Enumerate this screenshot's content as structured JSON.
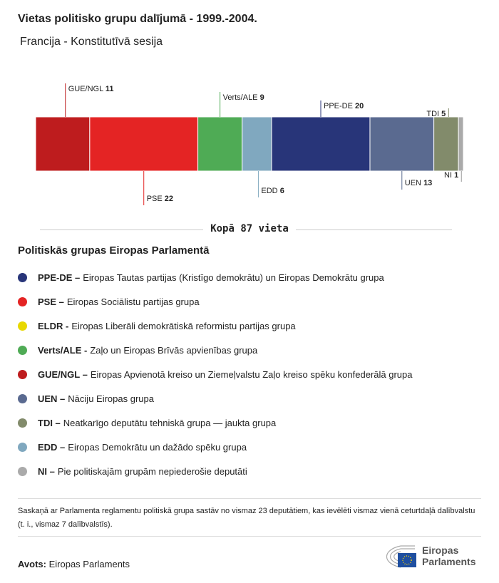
{
  "title": "Vietas politisko grupu dalījumā - 1999.-2004.",
  "subtitle": "Francija - Konstitutīvā sesija",
  "chart_data": {
    "type": "bar",
    "orientation": "stacked-horizontal",
    "categories": [
      "GUE/NGL",
      "PSE",
      "Verts/ALE",
      "EDD",
      "PPE-DE",
      "UEN",
      "TDI",
      "NI"
    ],
    "values": [
      11,
      22,
      9,
      6,
      20,
      13,
      5,
      1
    ],
    "colors": [
      "#be1c1e",
      "#e42424",
      "#4fab55",
      "#80a8bf",
      "#283579",
      "#5a6a90",
      "#828b6b",
      "#aaaaaa"
    ],
    "total": 87
  },
  "total_label": "Kopā 87 vieta",
  "legend_title": "Politiskās grupas Eiropas Parlamentā",
  "legend": [
    {
      "abbr": "PPE-DE –",
      "desc": "Eiropas Tautas partijas (Kristīgo demokrātu) un Eiropas Demokrātu grupa",
      "color": "#283579"
    },
    {
      "abbr": "PSE –",
      "desc": "Eiropas Sociālistu partijas grupa",
      "color": "#e42424"
    },
    {
      "abbr": "ELDR -",
      "desc": "Eiropas Liberāli demokrātiskā reformistu partijas grupa",
      "color": "#e8d800"
    },
    {
      "abbr": "Verts/ALE -",
      "desc": "Zaļo un Eiropas Brīvās apvienības grupa",
      "color": "#4fab55"
    },
    {
      "abbr": "GUE/NGL –",
      "desc": "Eiropas Apvienotā kreiso un Ziemeļvalstu Zaļo kreiso spēku konfederālā grupa",
      "color": "#be1c1e"
    },
    {
      "abbr": "UEN –",
      "desc": "Nāciju Eiropas grupa",
      "color": "#5a6a90"
    },
    {
      "abbr": "TDI –",
      "desc": "Neatkarīgo deputātu tehniskā grupa — jaukta grupa",
      "color": "#828b6b"
    },
    {
      "abbr": "EDD –",
      "desc": "Eiropas Demokrātu un dažādo spēku grupa",
      "color": "#80a8bf"
    },
    {
      "abbr": "NI –",
      "desc": "Pie politiskajām grupām nepiederošie deputāti",
      "color": "#aaaaaa"
    }
  ],
  "note": "Saskaņā ar Parlamenta reglamentu politiskā grupa sastāv no vismaz 23 deputātiem, kas ievēlēti vismaz vienā ceturtdaļā dalībvalstu (t. i., vismaz 7 dalībvalstīs).",
  "source_label": "Avots:",
  "source": "Eiropas Parlaments",
  "logo": {
    "line1": "Eiropas",
    "line2": "Parlaments"
  }
}
